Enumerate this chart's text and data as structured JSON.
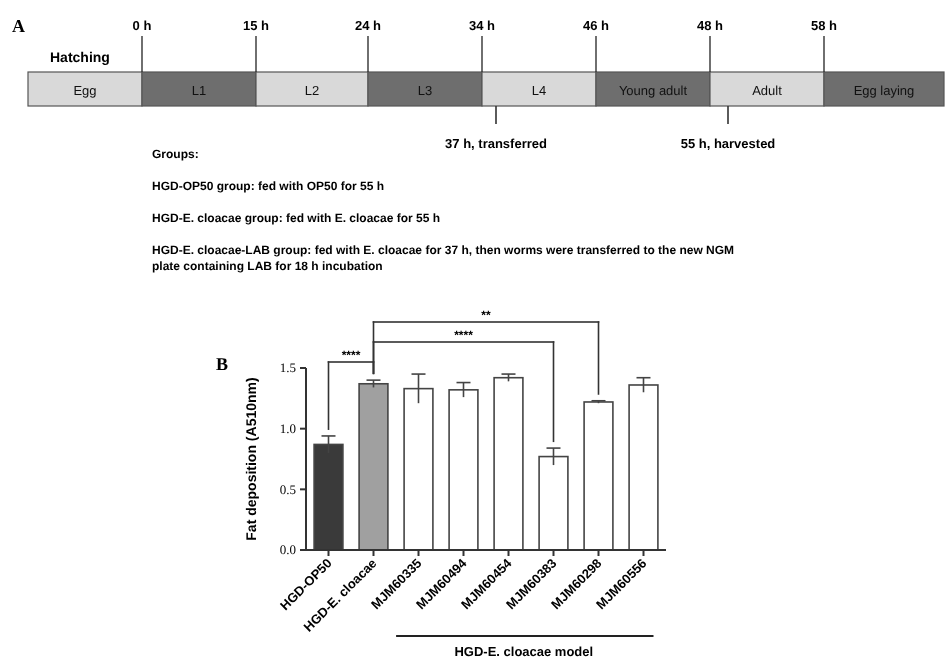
{
  "chart_data": [
    {
      "type": "other",
      "title": "A",
      "categories": [
        "Egg",
        "L1",
        "L2",
        "L3",
        "L4",
        "Young adult",
        "Adult",
        "Egg laying"
      ],
      "annotations": [
        "Hatching",
        "0 h",
        "15 h",
        "24 h",
        "34 h",
        "46 h",
        "48 h",
        "58 h",
        "37 h, transferred",
        "55 h, harvested",
        "Groups:",
        "HGD-OP50 group:  fed with OP50 for 55 h",
        "HGD-E. cloacae group:  fed with E. cloacae for 55 h",
        "HGD-E. cloacae-LAB group: fed with E. cloacae  for 37 h, then worms were transferred to the new NGM plate containing LAB for 18 h incubation"
      ]
    },
    {
      "type": "bar",
      "title": "B",
      "ylabel": "Fat deposition (A510nm)",
      "categories": [
        "HGD-OP50",
        "HGD-E. cloacae",
        "MJM60335",
        "MJM60494",
        "MJM60454",
        "MJM60383",
        "MJM60298",
        "MJM60556"
      ],
      "values": [
        0.87,
        1.37,
        1.33,
        1.32,
        1.42,
        0.77,
        1.22,
        1.36
      ],
      "errors": [
        0.07,
        0.03,
        0.12,
        0.06,
        0.03,
        0.07,
        0.01,
        0.06
      ],
      "colors": [
        "#3a3a3a",
        "#a0a0a0",
        "#ffffff",
        "#ffffff",
        "#ffffff",
        "#ffffff",
        "#ffffff",
        "#ffffff"
      ],
      "ylim": [
        0,
        1.5
      ],
      "yticks": [
        {
          "value": 0,
          "label": "0.0"
        },
        {
          "value": 0.5,
          "label": "0.5"
        },
        {
          "value": 1,
          "label": "1.0"
        },
        {
          "value": 1.5,
          "label": "1.5"
        }
      ],
      "grid": false,
      "annotations": [
        "****",
        "****",
        "**",
        "HGD-E. cloacae model"
      ]
    }
  ]
}
